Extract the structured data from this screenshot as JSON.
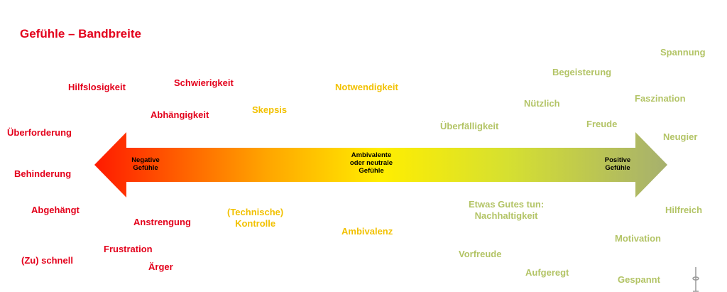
{
  "title": "Gefühle – Bandbreite",
  "arrow_labels": {
    "negative": "Negative\nGefühle",
    "neutral": "Ambivalente\noder neutrale\nGefühle",
    "positive": "Positive\nGefühle"
  },
  "words": {
    "negative": [
      "Hilfslosigkeit",
      "Schwierigkeit",
      "Abhängigkeit",
      "Überforderung",
      "Behinderung",
      "Abgehängt",
      "Anstrengung",
      "Frustration",
      "(Zu) schnell",
      "Ärger"
    ],
    "neutral": [
      "Notwendigkeit",
      "Skepsis",
      "(Technische)\nKontrolle",
      "Ambivalenz"
    ],
    "positive": [
      "Spannung",
      "Begeisterung",
      "Faszination",
      "Nützlich",
      "Freude",
      "Überfälligkeit",
      "Neugier",
      "Etwas Gutes tun:\nNachhaltigkeit",
      "Hilfreich",
      "Motivation",
      "Vorfreude",
      "Aufgeregt",
      "Gespannt"
    ]
  }
}
